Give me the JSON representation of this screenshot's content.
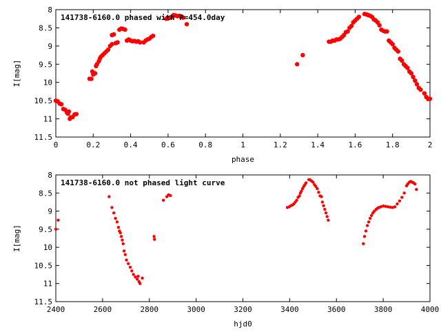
{
  "chart_data": [
    {
      "type": "scatter",
      "title": "141738-6160.0 phased with P=454.0day",
      "xlabel": "phase",
      "ylabel": "I[mag]",
      "xlim": [
        0,
        2
      ],
      "ylim": [
        11.5,
        8
      ],
      "y_inverted": true,
      "grid": false,
      "marker_color": "#ff0000",
      "xticks": [
        0,
        0.2,
        0.4,
        0.6,
        0.8,
        1,
        1.2,
        1.4,
        1.6,
        1.8,
        2
      ],
      "xtick_labels": [
        "0",
        "0.2",
        "0.4",
        "0.6",
        "0.8",
        "1",
        "1.2",
        "1.4",
        "1.6",
        "1.8",
        "2"
      ],
      "yticks": [
        8,
        8.5,
        9,
        9.5,
        10,
        10.5,
        11,
        11.5
      ],
      "ytick_labels": [
        "8",
        "8.5",
        "9",
        "9.5",
        "10",
        "10.5",
        "11",
        "11.5"
      ],
      "series": [
        {
          "points": [
            [
              0.0,
              10.5
            ],
            [
              0.01,
              10.52
            ],
            [
              0.02,
              10.58
            ],
            [
              0.03,
              10.6
            ],
            [
              0.04,
              10.73
            ],
            [
              0.05,
              10.75
            ],
            [
              0.06,
              10.83
            ],
            [
              0.065,
              10.86
            ],
            [
              0.07,
              10.8
            ],
            [
              0.075,
              11.0
            ],
            [
              0.08,
              10.96
            ],
            [
              0.09,
              10.95
            ],
            [
              0.1,
              10.88
            ],
            [
              0.11,
              10.87
            ],
            [
              0.18,
              9.9
            ],
            [
              0.19,
              9.9
            ],
            [
              0.195,
              9.7
            ],
            [
              0.2,
              9.78
            ],
            [
              0.21,
              9.75
            ],
            [
              0.215,
              9.55
            ],
            [
              0.22,
              9.5
            ],
            [
              0.23,
              9.42
            ],
            [
              0.235,
              9.35
            ],
            [
              0.24,
              9.3
            ],
            [
              0.25,
              9.25
            ],
            [
              0.26,
              9.2
            ],
            [
              0.27,
              9.15
            ],
            [
              0.28,
              9.1
            ],
            [
              0.29,
              9.0
            ],
            [
              0.3,
              8.95
            ],
            [
              0.3,
              8.7
            ],
            [
              0.31,
              8.68
            ],
            [
              0.32,
              8.92
            ],
            [
              0.33,
              8.9
            ],
            [
              0.34,
              8.55
            ],
            [
              0.35,
              8.52
            ],
            [
              0.36,
              8.53
            ],
            [
              0.37,
              8.55
            ],
            [
              0.38,
              8.85
            ],
            [
              0.39,
              8.82
            ],
            [
              0.4,
              8.85
            ],
            [
              0.41,
              8.87
            ],
            [
              0.42,
              8.86
            ],
            [
              0.43,
              8.88
            ],
            [
              0.44,
              8.87
            ],
            [
              0.45,
              8.9
            ],
            [
              0.47,
              8.9
            ],
            [
              0.48,
              8.85
            ],
            [
              0.49,
              8.82
            ],
            [
              0.5,
              8.8
            ],
            [
              0.51,
              8.75
            ],
            [
              0.52,
              8.72
            ],
            [
              0.59,
              8.25
            ],
            [
              0.6,
              8.24
            ],
            [
              0.61,
              8.22
            ],
            [
              0.62,
              8.2
            ],
            [
              0.63,
              8.15
            ],
            [
              0.64,
              8.16
            ],
            [
              0.65,
              8.18
            ],
            [
              0.66,
              8.17
            ],
            [
              0.67,
              8.2
            ],
            [
              0.68,
              8.22
            ],
            [
              0.7,
              8.4
            ],
            [
              1.29,
              9.5
            ],
            [
              1.32,
              9.25
            ],
            [
              1.46,
              8.88
            ],
            [
              1.47,
              8.88
            ],
            [
              1.48,
              8.85
            ],
            [
              1.49,
              8.85
            ],
            [
              1.5,
              8.82
            ],
            [
              1.51,
              8.82
            ],
            [
              1.52,
              8.8
            ],
            [
              1.53,
              8.75
            ],
            [
              1.54,
              8.7
            ],
            [
              1.55,
              8.62
            ],
            [
              1.56,
              8.6
            ],
            [
              1.57,
              8.5
            ],
            [
              1.58,
              8.45
            ],
            [
              1.59,
              8.35
            ],
            [
              1.6,
              8.3
            ],
            [
              1.61,
              8.25
            ],
            [
              1.62,
              8.2
            ],
            [
              1.65,
              8.12
            ],
            [
              1.66,
              8.13
            ],
            [
              1.67,
              8.15
            ],
            [
              1.68,
              8.17
            ],
            [
              1.69,
              8.2
            ],
            [
              1.7,
              8.27
            ],
            [
              1.71,
              8.3
            ],
            [
              1.72,
              8.35
            ],
            [
              1.73,
              8.43
            ],
            [
              1.74,
              8.55
            ],
            [
              1.75,
              8.58
            ],
            [
              1.76,
              8.6
            ],
            [
              1.77,
              8.6
            ],
            [
              1.78,
              8.85
            ],
            [
              1.79,
              8.9
            ],
            [
              1.8,
              8.95
            ],
            [
              1.81,
              9.05
            ],
            [
              1.82,
              9.1
            ],
            [
              1.83,
              9.15
            ],
            [
              1.84,
              9.35
            ],
            [
              1.85,
              9.4
            ],
            [
              1.86,
              9.5
            ],
            [
              1.87,
              9.55
            ],
            [
              1.88,
              9.6
            ],
            [
              1.89,
              9.7
            ],
            [
              1.9,
              9.75
            ],
            [
              1.91,
              9.85
            ],
            [
              1.92,
              9.95
            ],
            [
              1.93,
              10.05
            ],
            [
              1.94,
              10.15
            ],
            [
              1.95,
              10.2
            ],
            [
              1.97,
              10.3
            ],
            [
              1.98,
              10.4
            ],
            [
              1.99,
              10.45
            ],
            [
              2.0,
              10.45
            ]
          ]
        }
      ]
    },
    {
      "type": "scatter",
      "title": "141738-6160.0 not phased light curve",
      "xlabel": "hjd0",
      "ylabel": "I[mag]",
      "xlim": [
        2400,
        4000
      ],
      "ylim": [
        11.5,
        8
      ],
      "y_inverted": true,
      "grid": false,
      "marker_color": "#ff0000",
      "xticks": [
        2400,
        2600,
        2800,
        3000,
        3200,
        3400,
        3600,
        3800,
        4000
      ],
      "xtick_labels": [
        "2400",
        "2600",
        "2800",
        "3000",
        "3200",
        "3400",
        "3600",
        "3800",
        "4000"
      ],
      "yticks": [
        8,
        8.5,
        9,
        9.5,
        10,
        10.5,
        11,
        11.5
      ],
      "ytick_labels": [
        "8",
        "8.5",
        "9",
        "9.5",
        "10",
        "10.5",
        "11",
        "11.5"
      ],
      "series": [
        {
          "points": [
            [
              2400,
              9.5
            ],
            [
              2410,
              9.25
            ],
            [
              2628,
              8.6
            ],
            [
              2640,
              8.9
            ],
            [
              2648,
              9.05
            ],
            [
              2655,
              9.2
            ],
            [
              2662,
              9.3
            ],
            [
              2668,
              9.45
            ],
            [
              2672,
              9.55
            ],
            [
              2676,
              9.6
            ],
            [
              2680,
              9.7
            ],
            [
              2684,
              9.8
            ],
            [
              2688,
              9.9
            ],
            [
              2692,
              10.1
            ],
            [
              2697,
              10.2
            ],
            [
              2702,
              10.35
            ],
            [
              2710,
              10.45
            ],
            [
              2718,
              10.55
            ],
            [
              2725,
              10.65
            ],
            [
              2732,
              10.75
            ],
            [
              2740,
              10.82
            ],
            [
              2748,
              10.88
            ],
            [
              2752,
              10.8
            ],
            [
              2756,
              10.95
            ],
            [
              2760,
              11.0
            ],
            [
              2770,
              10.85
            ],
            [
              2820,
              9.7
            ],
            [
              2822,
              9.78
            ],
            [
              2860,
              8.7
            ],
            [
              2875,
              8.6
            ],
            [
              2882,
              8.55
            ],
            [
              2890,
              8.57
            ],
            [
              3390,
              8.9
            ],
            [
              3398,
              8.88
            ],
            [
              3405,
              8.85
            ],
            [
              3412,
              8.83
            ],
            [
              3418,
              8.8
            ],
            [
              3424,
              8.75
            ],
            [
              3430,
              8.7
            ],
            [
              3436,
              8.62
            ],
            [
              3442,
              8.58
            ],
            [
              3446,
              8.5
            ],
            [
              3450,
              8.45
            ],
            [
              3455,
              8.38
            ],
            [
              3460,
              8.32
            ],
            [
              3465,
              8.27
            ],
            [
              3470,
              8.22
            ],
            [
              3482,
              8.13
            ],
            [
              3488,
              8.14
            ],
            [
              3494,
              8.17
            ],
            [
              3500,
              8.2
            ],
            [
              3506,
              8.27
            ],
            [
              3512,
              8.32
            ],
            [
              3518,
              8.38
            ],
            [
              3524,
              8.48
            ],
            [
              3530,
              8.58
            ],
            [
              3536,
              8.6
            ],
            [
              3540,
              8.75
            ],
            [
              3545,
              8.85
            ],
            [
              3550,
              8.95
            ],
            [
              3555,
              9.05
            ],
            [
              3560,
              9.15
            ],
            [
              3565,
              9.25
            ],
            [
              3715,
              9.9
            ],
            [
              3720,
              9.7
            ],
            [
              3726,
              9.55
            ],
            [
              3732,
              9.4
            ],
            [
              3738,
              9.3
            ],
            [
              3744,
              9.2
            ],
            [
              3750,
              9.12
            ],
            [
              3756,
              9.05
            ],
            [
              3762,
              9.0
            ],
            [
              3770,
              8.95
            ],
            [
              3776,
              8.92
            ],
            [
              3782,
              8.9
            ],
            [
              3790,
              8.88
            ],
            [
              3800,
              8.86
            ],
            [
              3810,
              8.87
            ],
            [
              3820,
              8.88
            ],
            [
              3830,
              8.89
            ],
            [
              3840,
              8.9
            ],
            [
              3850,
              8.88
            ],
            [
              3860,
              8.8
            ],
            [
              3870,
              8.72
            ],
            [
              3880,
              8.62
            ],
            [
              3890,
              8.5
            ],
            [
              3900,
              8.3
            ],
            [
              3905,
              8.25
            ],
            [
              3912,
              8.2
            ],
            [
              3918,
              8.18
            ],
            [
              3924,
              8.2
            ],
            [
              3930,
              8.22
            ],
            [
              3936,
              8.25
            ],
            [
              3942,
              8.4
            ]
          ]
        }
      ]
    }
  ]
}
